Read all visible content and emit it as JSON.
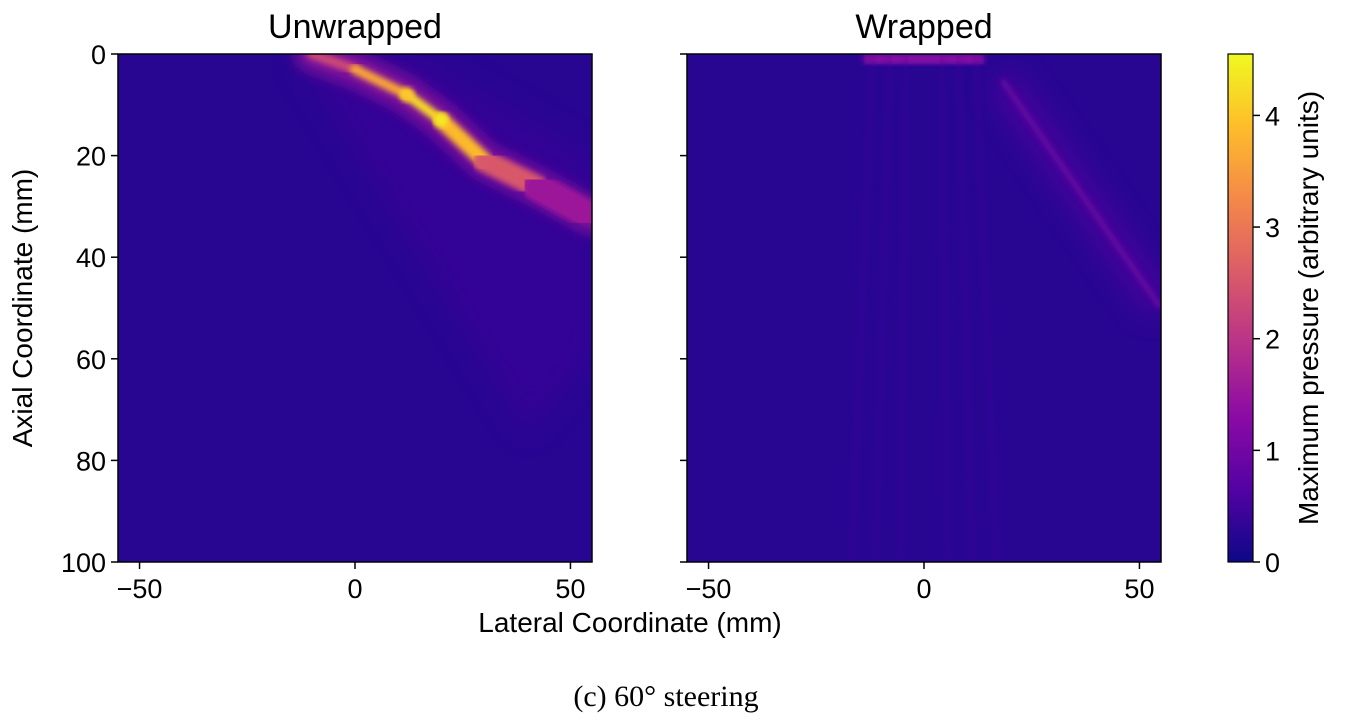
{
  "caption": "(c) 60° steering",
  "chart_data": [
    {
      "type": "heatmap",
      "title": "Unwrapped",
      "xlabel": "Lateral Coordinate (mm)",
      "ylabel": "Axial Coordinate (mm)",
      "xlim": [
        -55,
        55
      ],
      "ylim": [
        100,
        0
      ],
      "x_ticks": [
        -50,
        0,
        50
      ],
      "y_ticks": [
        0,
        20,
        40,
        60,
        80,
        100
      ],
      "x_tick_labels": [
        "−50",
        "0",
        "50"
      ],
      "y_tick_labels": [
        "0",
        "20",
        "40",
        "60",
        "80",
        "100"
      ],
      "background_value": 0.25,
      "beam": {
        "steering_angle_deg": 60,
        "aperture_x": [
          -14,
          14
        ],
        "path": [
          {
            "x": -10,
            "z": 0,
            "value": 1.4
          },
          {
            "x": 0,
            "z": 3,
            "value": 3.2
          },
          {
            "x": 12,
            "z": 8,
            "value": 4.0
          },
          {
            "x": 20,
            "z": 13,
            "value": 4.4
          },
          {
            "x": 30,
            "z": 21,
            "value": 3.3
          },
          {
            "x": 42,
            "z": 26,
            "value": 1.8
          },
          {
            "x": 55,
            "z": 32,
            "value": 1.3
          }
        ]
      }
    },
    {
      "type": "heatmap",
      "title": "Wrapped",
      "xlabel": "Lateral Coordinate (mm)",
      "xlim": [
        -55,
        55
      ],
      "ylim": [
        100,
        0
      ],
      "x_ticks": [
        -50,
        0,
        50
      ],
      "y_ticks": [
        0,
        20,
        40,
        60,
        80,
        100
      ],
      "x_tick_labels": [
        "−50",
        "0",
        "50"
      ],
      "background_value": 0.25,
      "beam": {
        "aperture_x": [
          -14,
          14
        ],
        "near_field_value": 1.3,
        "lobe_value": 0.8,
        "lobe_path": [
          {
            "x": 18,
            "z": 5
          },
          {
            "x": 55,
            "z": 50
          }
        ]
      }
    }
  ],
  "colorbar": {
    "label": "Maximum pressure (arbitrary units)",
    "range": [
      0,
      4.55
    ],
    "ticks": [
      0,
      1,
      2,
      3,
      4
    ],
    "tick_labels": [
      "0",
      "1",
      "2",
      "3",
      "4"
    ],
    "colormap": "plasma",
    "colormap_stops": [
      "#0d0887",
      "#5302a3",
      "#8b0aa5",
      "#b83289",
      "#db5c68",
      "#f48849",
      "#febd2a",
      "#f0f921"
    ]
  }
}
